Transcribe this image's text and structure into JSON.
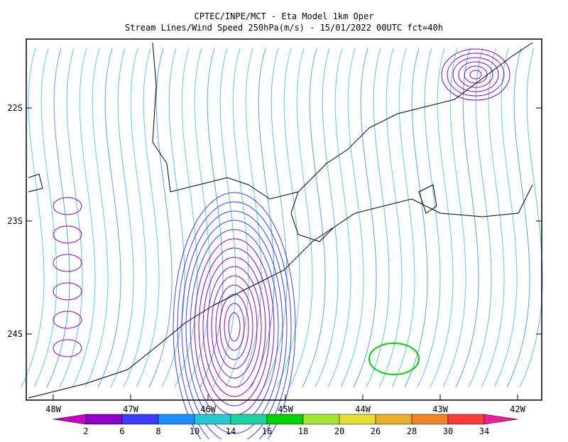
{
  "header": {
    "title": "CPTEC/INPE/MCT -  Eta Model 1km Oper",
    "subtitle": "Stream Lines/Wind Speed 250hPa(m/s) - 15/01/2022 00UTC fct=40h"
  },
  "map": {
    "lat_labels": [
      "22S",
      "23S",
      "24S"
    ],
    "lon_labels": [
      "48W",
      "47W",
      "46W",
      "45W",
      "44W",
      "43W",
      "42W"
    ]
  },
  "colorbar": {
    "labels": [
      2,
      6,
      8,
      10,
      14,
      16,
      18,
      20,
      26,
      28,
      30,
      34
    ],
    "colors": [
      "#8c00c8",
      "#3c3cff",
      "#1e8cff",
      "#28c8d2",
      "#1ed2a0",
      "#00d200",
      "#a0e632",
      "#e6dc32",
      "#e6af2d",
      "#f08228",
      "#fa3c3c"
    ],
    "low_color": "#c800c8",
    "high_color": "#f01e96"
  }
}
